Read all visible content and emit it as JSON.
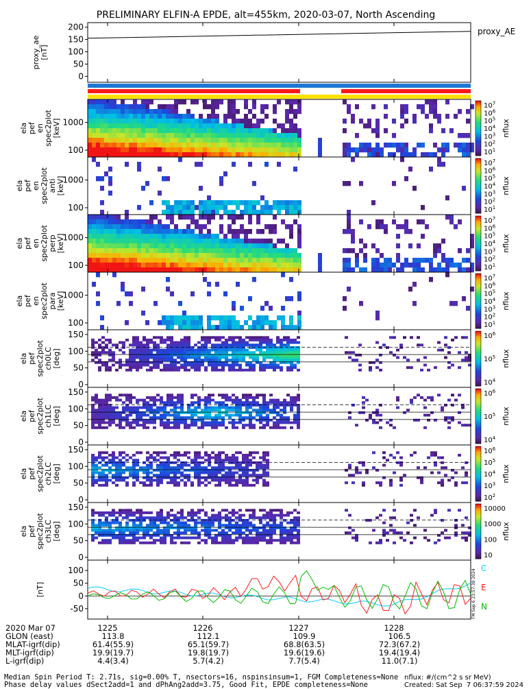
{
  "title": "PRELIMINARY ELFIN-A EPDE, alt=455km, 2020-03-07, North Ascending",
  "colors": {
    "bar_blue": "#1f77d4",
    "bar_red": "#ff1a1a",
    "bar_yellow": "#ffe000"
  },
  "chart_data": [
    {
      "name": "proxy_ae",
      "type": "line",
      "ylabel": "proxy_ae\n[nT]",
      "legend": "proxy_AE",
      "y_ticks": [
        "200",
        "150",
        "100",
        "50",
        "0"
      ],
      "ylim": [
        -10,
        210
      ],
      "x": [
        "1225",
        "1226",
        "1227",
        "1228"
      ],
      "values_start": 155,
      "values_end": 183
    },
    {
      "name": "pef_en",
      "type": "heatmap",
      "ylabel": "ela\npef\nen\nspec2plot\n[keV]",
      "y_ticks": [
        "1000",
        "100"
      ],
      "cbar_label": "nflux",
      "cbar_ticks": [
        "10^7",
        "10^6",
        "10^5",
        "10^4",
        "10^3",
        "10^2",
        "10^1"
      ]
    },
    {
      "name": "pef_en_anti",
      "type": "heatmap",
      "ylabel": "ela\npef\nen\nspec2plot\nanti\n[keV]",
      "y_ticks": [
        "1000",
        "100"
      ],
      "cbar_label": "nflux",
      "cbar_ticks": [
        "10^7",
        "10^6",
        "10^5",
        "10^4",
        "10^3",
        "10^2",
        "10^1"
      ]
    },
    {
      "name": "pef_en_perp",
      "type": "heatmap",
      "ylabel": "ela\npef\nen\nspec2plot\nperp\n[keV]",
      "y_ticks": [
        "1000",
        "100"
      ],
      "cbar_label": "nflux",
      "cbar_ticks": [
        "10^7",
        "10^6",
        "10^5",
        "10^4",
        "10^3",
        "10^2",
        "10^1"
      ]
    },
    {
      "name": "pef_en_para",
      "type": "heatmap",
      "ylabel": "ela\npef\nen\nspec2plot\npara\n[keV]",
      "y_ticks": [
        "1000",
        "100"
      ],
      "cbar_label": "nflux",
      "cbar_ticks": [
        "10^7",
        "10^6",
        "10^5",
        "10^4",
        "10^3",
        "10^2",
        "10^1"
      ]
    },
    {
      "name": "pef_ch0LC",
      "type": "heatmap",
      "ylabel": "ela\npef\nspec2plot\nch0LC\n[deg]",
      "y_ticks": [
        "150",
        "100",
        "50",
        "0"
      ],
      "cbar_label": "nflux",
      "cbar_ticks": [
        "10^6",
        "10^5",
        "10^4"
      ]
    },
    {
      "name": "pef_ch1LC",
      "type": "heatmap",
      "ylabel": "ela\npef\nspec2plot\nch1LC\n[deg]",
      "y_ticks": [
        "150",
        "100",
        "50",
        "0"
      ],
      "cbar_label": "nflux",
      "cbar_ticks": [
        "10^6",
        "10^5",
        "10^4"
      ]
    },
    {
      "name": "pef_ch2LC",
      "type": "heatmap",
      "ylabel": "ela\npef\nspec2plot\nch2LC\n[deg]",
      "y_ticks": [
        "150",
        "100",
        "50",
        "0"
      ],
      "cbar_label": "nflux",
      "cbar_ticks": [
        "10^6",
        "10^5",
        "10^4",
        "10^3",
        "10^2"
      ]
    },
    {
      "name": "pef_ch3LC",
      "type": "heatmap",
      "ylabel": "ela\npef\nspec2plot\nch3LC\n[deg]",
      "y_ticks": [
        "150",
        "100",
        "50",
        "0"
      ],
      "cbar_label": "nflux",
      "cbar_ticks": [
        "10000",
        "1000",
        "100",
        "10"
      ]
    },
    {
      "name": "b_field",
      "type": "line",
      "ylabel": "[nT]",
      "y_ticks": [
        "100",
        "50",
        "0",
        "-50"
      ],
      "ylim": [
        -80,
        130
      ],
      "legend": [
        {
          "name": "C",
          "color": "#00ccff"
        },
        {
          "name": "E",
          "color": "#ff1a1a"
        },
        {
          "name": "N",
          "color": "#00bb00"
        }
      ],
      "side_stamp": "FM Sep 6 23:57:38 2024"
    }
  ],
  "xaxis": {
    "ticks": [
      "1225",
      "1226",
      "1227",
      "1228"
    ],
    "rows": [
      {
        "label": "2020 Mar 07",
        "values": [
          "1225",
          "1226",
          "1227",
          "1228"
        ]
      },
      {
        "label": "GLON (east)",
        "values": [
          "113.8",
          "112.1",
          "109.9",
          "106.5"
        ]
      },
      {
        "label": "MLAT-igrf(dip)",
        "values": [
          "61.4(55.9)",
          "65.1(59.7)",
          "68.8(63.5)",
          "72.3(67.2)"
        ]
      },
      {
        "label": "MLT-igrf(dip)",
        "values": [
          "19.9(19.7)",
          "19.8(19.7)",
          "19.6(19.6)",
          "19.4(19.4)"
        ]
      },
      {
        "label": "L-igrf(dip)",
        "values": [
          "4.4(3.4)",
          "5.7(4.2)",
          "7.7(5.4)",
          "11.0(7.1)"
        ]
      }
    ]
  },
  "footer": {
    "line1": "Median Spin Period T: 2.71s, sig=0.00% T, nsectors=16, nspinsinsum=1, FGM Completeness=None",
    "line2": "Phase delay values dSect2add=1 and dPhAng2add=3.75, Good Fit, EPDE completeness=None",
    "units": "nflux: #/(cm^2 s sr MeV)",
    "created": "Created: Sat Sep  7 06:37:59 2024"
  }
}
